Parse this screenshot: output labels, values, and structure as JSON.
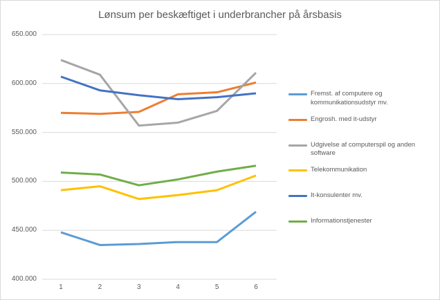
{
  "chart_data": {
    "type": "line",
    "title": "Lønsum per beskæftiget i underbrancher på årsbasis",
    "xlabel": "",
    "ylabel": "",
    "categories": [
      "1",
      "2",
      "3",
      "4",
      "5",
      "6"
    ],
    "series": [
      {
        "name": "Fremst. af computere og kommunikationsudstyr mv.",
        "color": "#5B9BD5",
        "values": [
          448000,
          435000,
          436000,
          438000,
          438000,
          469000
        ]
      },
      {
        "name": "Engrosh. med it-udstyr",
        "color": "#ED7D31",
        "values": [
          570000,
          569000,
          571000,
          589000,
          591000,
          601000
        ]
      },
      {
        "name": "Udgivelse af computerspil og anden software",
        "color": "#A5A5A5",
        "values": [
          624000,
          609000,
          557000,
          560000,
          572000,
          611000
        ]
      },
      {
        "name": "Telekommunikation",
        "color": "#FFC000",
        "values": [
          491000,
          495000,
          482000,
          486000,
          491000,
          506000
        ]
      },
      {
        "name": "It-konsulenter mv.",
        "color": "#4472C4",
        "values": [
          607000,
          593000,
          588000,
          584000,
          586000,
          590000
        ]
      },
      {
        "name": "Informationstjenester",
        "color": "#70AD47",
        "values": [
          509000,
          507000,
          496000,
          502000,
          510000,
          516000
        ]
      }
    ],
    "y_tick_labels": [
      "650.000",
      "600.000",
      "550.000",
      "500.000",
      "450.000",
      "400.000"
    ],
    "y_tick_values": [
      650000,
      600000,
      550000,
      500000,
      450000,
      400000
    ],
    "ylim": [
      400000,
      650000
    ],
    "x_tick_labels": [
      "1",
      "2",
      "3",
      "4",
      "5",
      "6"
    ],
    "grid": true,
    "legend_position": "right",
    "gridline_color": "#D9D9D9",
    "text_color": "#595959",
    "background_color": "#FFFFFF",
    "border_color": "#D9D9D9"
  }
}
